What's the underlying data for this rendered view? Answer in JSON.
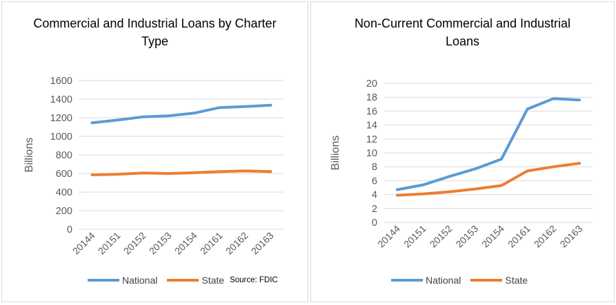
{
  "source_note": "Source: FDIC",
  "colors": {
    "national": "#5b9bd5",
    "state": "#ed7d31",
    "grid": "#d9d9d9",
    "axis_text": "#595959"
  },
  "chart_data": [
    {
      "type": "line",
      "title": "Commercial and Industrial Loans by Charter Type",
      "ylabel": "Billions",
      "xlabel": "",
      "categories": [
        "20144",
        "20151",
        "20152",
        "20153",
        "20154",
        "20161",
        "20162",
        "20163"
      ],
      "ylim": [
        0,
        1600
      ],
      "yticks": [
        0,
        200,
        400,
        600,
        800,
        1000,
        1200,
        1400,
        1600
      ],
      "grid": true,
      "legend_position": "bottom",
      "series": [
        {
          "name": "National",
          "color": "#5b9bd5",
          "values": [
            1145,
            1175,
            1210,
            1220,
            1250,
            1310,
            1320,
            1335
          ]
        },
        {
          "name": "State",
          "color": "#ed7d31",
          "values": [
            585,
            592,
            605,
            600,
            608,
            620,
            628,
            620
          ]
        }
      ]
    },
    {
      "type": "line",
      "title": "Non-Current Commercial and Industrial Loans",
      "ylabel": "Billions",
      "xlabel": "",
      "categories": [
        "20144",
        "20151",
        "20152",
        "20153",
        "20154",
        "20161",
        "20162",
        "20163"
      ],
      "ylim": [
        0,
        20
      ],
      "yticks": [
        0,
        2,
        4,
        6,
        8,
        10,
        12,
        14,
        16,
        18,
        20
      ],
      "grid": true,
      "legend_position": "bottom",
      "series": [
        {
          "name": "National",
          "color": "#5b9bd5",
          "values": [
            4.7,
            5.4,
            6.6,
            7.7,
            9.1,
            16.3,
            17.8,
            17.6
          ]
        },
        {
          "name": "State",
          "color": "#ed7d31",
          "values": [
            3.9,
            4.1,
            4.4,
            4.8,
            5.3,
            7.4,
            8.0,
            8.5
          ]
        }
      ]
    }
  ]
}
